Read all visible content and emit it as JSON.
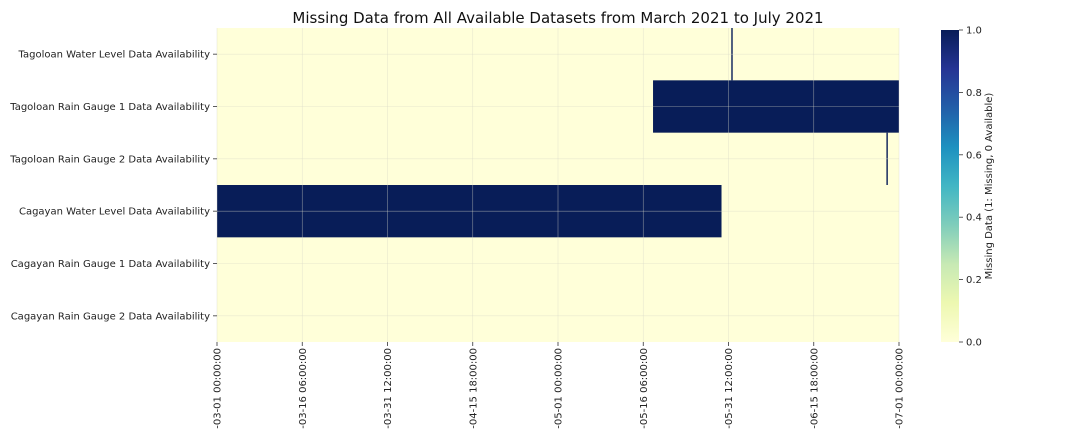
{
  "chart_data": {
    "type": "heatmap",
    "title": "Missing Data from All Available Datasets from March 2021 to July 2021",
    "rows": [
      "Tagoloan Water Level Data Availability",
      "Tagoloan Rain Gauge 1 Data Availability",
      "Tagoloan Rain Gauge 2 Data Availability",
      "Cagayan Water Level Data Availability",
      "Cagayan Rain Gauge 1 Data Availability",
      "Cagayan Rain Gauge 2 Data Availability"
    ],
    "x_ticks": [
      "-03-01 00:00:00",
      "-03-16 06:00:00",
      "-03-31 12:00:00",
      "-04-15 18:00:00",
      "-05-01 00:00:00",
      "-05-16 06:00:00",
      "-05-31 12:00:00",
      "-06-15 18:00:00",
      "-07-01 00:00:00"
    ],
    "x_range": [
      "2021-03-01 00:00",
      "2021-07-01 00:00"
    ],
    "missing_intervals": [
      {
        "row": 0,
        "start": "2021-06-01 00:00",
        "end": "2021-06-01 06:00",
        "value": 1
      },
      {
        "row": 1,
        "start": "2021-05-18 00:00",
        "end": "2021-07-01 00:00",
        "value": 1
      },
      {
        "row": 2,
        "start": "2021-06-28 18:00",
        "end": "2021-06-29 00:00",
        "value": 1
      },
      {
        "row": 3,
        "start": "2021-03-01 00:00",
        "end": "2021-05-30 06:00",
        "value": 1
      }
    ],
    "colorbar": {
      "label": "Missing Data (1: Missing, 0 Available)",
      "ticks": [
        "0.0",
        "0.2",
        "0.4",
        "0.6",
        "0.8",
        "1.0"
      ],
      "range": [
        0,
        1
      ],
      "colormap": "YlGnBu"
    },
    "grid": true,
    "colors": {
      "missing": "#081d58",
      "available": "#ffffd9"
    }
  }
}
